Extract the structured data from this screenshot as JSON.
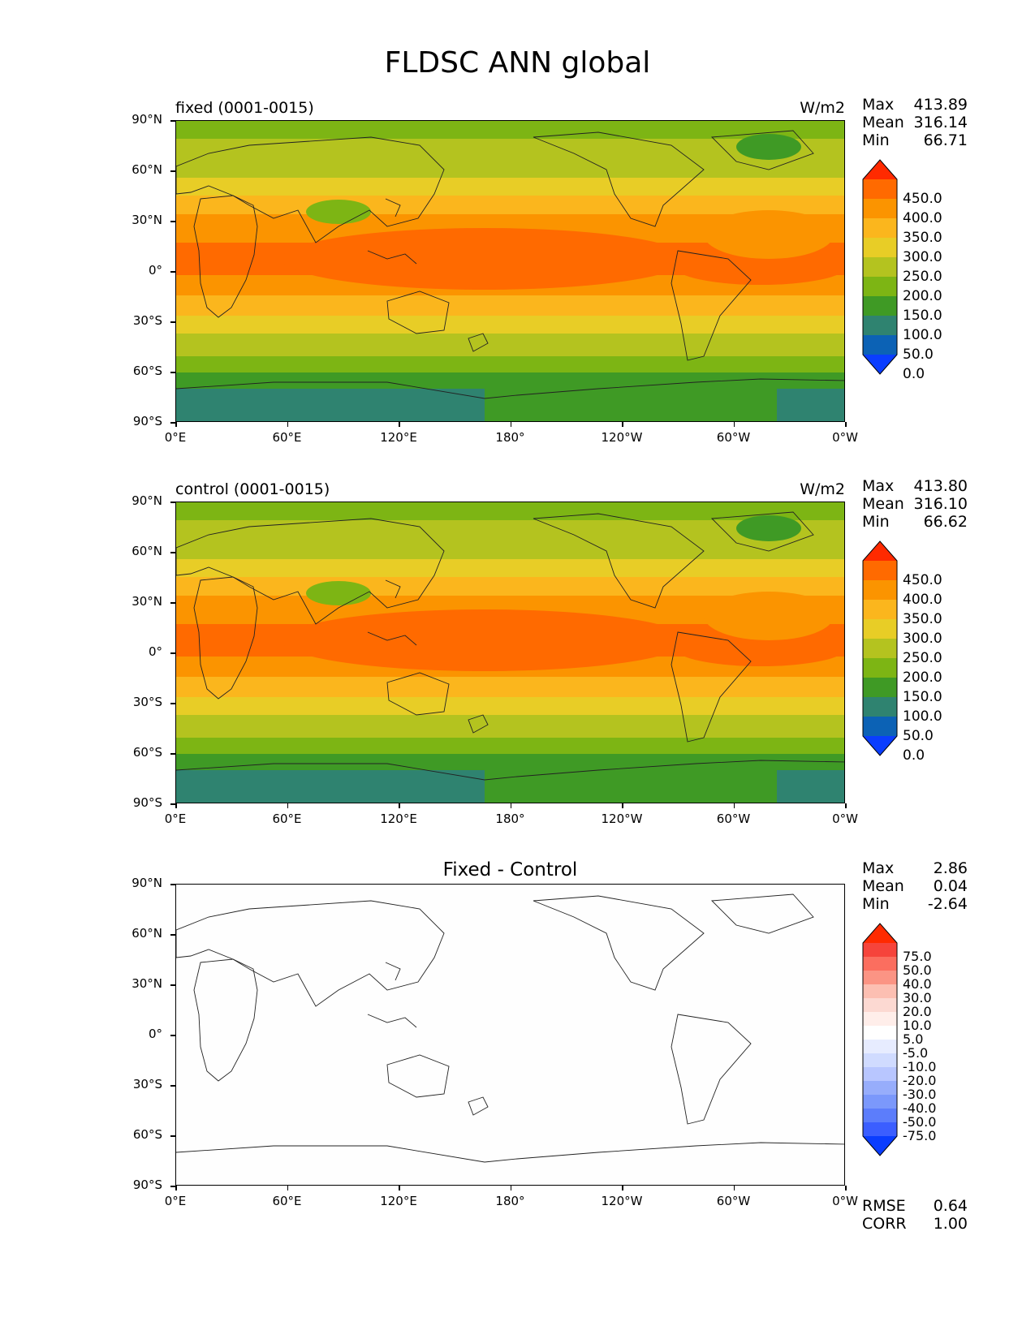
{
  "title": "FLDSC ANN global",
  "y_ticks": [
    "90°N",
    "60°N",
    "30°N",
    "0°",
    "30°S",
    "60°S",
    "90°S"
  ],
  "x_ticks": [
    "0°E",
    "60°E",
    "120°E",
    "180°",
    "120°W",
    "60°W",
    "0°W"
  ],
  "panels": [
    {
      "title": "fixed (0001-0015)",
      "units": "W/m2",
      "stats": {
        "max_label": "Max",
        "max": "413.89",
        "mean_label": "Mean",
        "mean": "316.14",
        "min_label": "Min",
        "min": "66.71"
      },
      "levels": [
        "450.0",
        "400.0",
        "350.0",
        "300.0",
        "250.0",
        "200.0",
        "150.0",
        "100.0",
        "50.0",
        "0.0"
      ]
    },
    {
      "title": "control (0001-0015)",
      "units": "W/m2",
      "stats": {
        "max_label": "Max",
        "max": "413.80",
        "mean_label": "Mean",
        "mean": "316.10",
        "min_label": "Min",
        "min": "66.62"
      },
      "levels": [
        "450.0",
        "400.0",
        "350.0",
        "300.0",
        "250.0",
        "200.0",
        "150.0",
        "100.0",
        "50.0",
        "0.0"
      ]
    },
    {
      "title": "Fixed - Control",
      "stats": {
        "max_label": "Max",
        "max": "2.86",
        "mean_label": "Mean",
        "mean": "0.04",
        "min_label": "Min",
        "min": "-2.64"
      },
      "levels": [
        "75.0",
        "50.0",
        "40.0",
        "30.0",
        "20.0",
        "10.0",
        "5.0",
        "-5.0",
        "-10.0",
        "-20.0",
        "-30.0",
        "-40.0",
        "-50.0",
        "-75.0"
      ],
      "footer": {
        "rmse_label": "RMSE",
        "rmse": "0.64",
        "corr_label": "CORR",
        "corr": "1.00"
      }
    }
  ],
  "colormaps": {
    "field": [
      "#ff2a00",
      "#ff6a00",
      "#fb9400",
      "#fbb61d",
      "#e8cd26",
      "#b4c31f",
      "#7db514",
      "#3f9a25",
      "#2f8370",
      "#0c62b5",
      "#0a3dff"
    ],
    "diff": [
      "#ff2a00",
      "#f6443b",
      "#fb6e5f",
      "#fb9484",
      "#fcbfb2",
      "#fcd9d2",
      "#ffeeea",
      "#ffffff",
      "#e7ecff",
      "#d0dbff",
      "#b8c6ff",
      "#97adfb",
      "#7b98fb",
      "#5c7dfb",
      "#3b5eff",
      "#0a3dff"
    ]
  }
}
